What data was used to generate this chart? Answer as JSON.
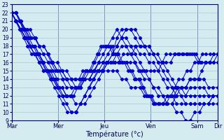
{
  "xlabel": "Température (°c)",
  "xlabels": [
    "Mar",
    "Mer",
    "Jeu",
    "Ven",
    "Sam",
    "Dir"
  ],
  "x_tick_positions": [
    0,
    54,
    108,
    162,
    216,
    240
  ],
  "ylim": [
    9,
    23
  ],
  "yticks": [
    9,
    10,
    11,
    12,
    13,
    14,
    15,
    16,
    17,
    18,
    19,
    20,
    21,
    22,
    23
  ],
  "bg_color": "#d4ecf0",
  "grid_color": "#a8ccd4",
  "line_color": "#0000cc",
  "markersize": 2.2,
  "x_total": 240,
  "series": [
    [
      22,
      22,
      21,
      20,
      19,
      18,
      17,
      16,
      15,
      14,
      13,
      12,
      11,
      10,
      10,
      10,
      11,
      12,
      13,
      14,
      15,
      15,
      16,
      16,
      16,
      16,
      17,
      17,
      17,
      18,
      18,
      18,
      17,
      17,
      17,
      16,
      16,
      16,
      17,
      17,
      17,
      17,
      17,
      17,
      16,
      16,
      16,
      16,
      17
    ],
    [
      22,
      21,
      20,
      19,
      18,
      17,
      16,
      15,
      15,
      14,
      13,
      12,
      11,
      10,
      10,
      11,
      12,
      13,
      14,
      15,
      15,
      16,
      16,
      17,
      18,
      18,
      18,
      18,
      17,
      17,
      16,
      16,
      15,
      14,
      13,
      13,
      12,
      12,
      12,
      13,
      13,
      13,
      13,
      12,
      12,
      12
    ],
    [
      22,
      21,
      20,
      19,
      18,
      17,
      17,
      16,
      16,
      15,
      14,
      14,
      13,
      13,
      13,
      13,
      14,
      14,
      15,
      15,
      15,
      15,
      15,
      15,
      14,
      14,
      13,
      13,
      13,
      12,
      12,
      11,
      11,
      11,
      11,
      11,
      12,
      13,
      13,
      14,
      14,
      14,
      14,
      13,
      13,
      13
    ],
    [
      22,
      21,
      21,
      20,
      19,
      19,
      18,
      18,
      17,
      16,
      15,
      15,
      14,
      13,
      13,
      13,
      14,
      14,
      15,
      15,
      16,
      16,
      17,
      19,
      20,
      20,
      20,
      19,
      18,
      18,
      18,
      17,
      16,
      15,
      14,
      13,
      13,
      13,
      12,
      12,
      12,
      12,
      12,
      12,
      12,
      12
    ],
    [
      22,
      22,
      21,
      20,
      20,
      19,
      18,
      18,
      17,
      16,
      16,
      15,
      15,
      14,
      14,
      14,
      14,
      15,
      15,
      16,
      16,
      17,
      18,
      18,
      19,
      20,
      20,
      20,
      19,
      18,
      18,
      17,
      16,
      16,
      15,
      14,
      13,
      12,
      11,
      11,
      11,
      11,
      11,
      11,
      12,
      12
    ],
    [
      22,
      21,
      20,
      19,
      18,
      18,
      17,
      17,
      16,
      16,
      15,
      15,
      14,
      14,
      13,
      13,
      14,
      14,
      15,
      16,
      17,
      18,
      19,
      20,
      19,
      18,
      17,
      16,
      15,
      14,
      14,
      13,
      13,
      12,
      12,
      12,
      11,
      11,
      11,
      11,
      11,
      11,
      11,
      11,
      11,
      11
    ],
    [
      22,
      21,
      20,
      19,
      18,
      17,
      17,
      16,
      15,
      14,
      13,
      13,
      12,
      12,
      11,
      11,
      11,
      12,
      13,
      14,
      15,
      16,
      17,
      18,
      19,
      19,
      18,
      17,
      16,
      15,
      14,
      13,
      12,
      12,
      11,
      11,
      10,
      10,
      9,
      9,
      10,
      10,
      11,
      11,
      12,
      12
    ],
    [
      22,
      22,
      21,
      20,
      19,
      18,
      18,
      17,
      16,
      15,
      15,
      14,
      13,
      13,
      12,
      12,
      12,
      13,
      14,
      15,
      15,
      16,
      17,
      18,
      18,
      18,
      17,
      17,
      16,
      16,
      15,
      15,
      14,
      14,
      13,
      12,
      12,
      11,
      11,
      11,
      12,
      12,
      13,
      14,
      14,
      15,
      15,
      16,
      16,
      17,
      17,
      17,
      17,
      17
    ],
    [
      22,
      21,
      20,
      19,
      18,
      17,
      17,
      16,
      15,
      15,
      14,
      14,
      13,
      12,
      12,
      12,
      13,
      13,
      14,
      15,
      15,
      16,
      17,
      18,
      18,
      18,
      17,
      17,
      16,
      16,
      15,
      14,
      14,
      13,
      12,
      12,
      11,
      11,
      11,
      11,
      12,
      12,
      13,
      13,
      13,
      14,
      14,
      14,
      15,
      16,
      16,
      17,
      17
    ],
    [
      22,
      21,
      21,
      20,
      20,
      19,
      19,
      18,
      17,
      17,
      16,
      15,
      15,
      14,
      14,
      14,
      14,
      14,
      15,
      15,
      15,
      15,
      16,
      16,
      16,
      16,
      16,
      16,
      16,
      16,
      16,
      16,
      15,
      15,
      15,
      15,
      15,
      15,
      16,
      17,
      17,
      17,
      17,
      17,
      17,
      17,
      17,
      16,
      16,
      16,
      16,
      16,
      16
    ]
  ]
}
